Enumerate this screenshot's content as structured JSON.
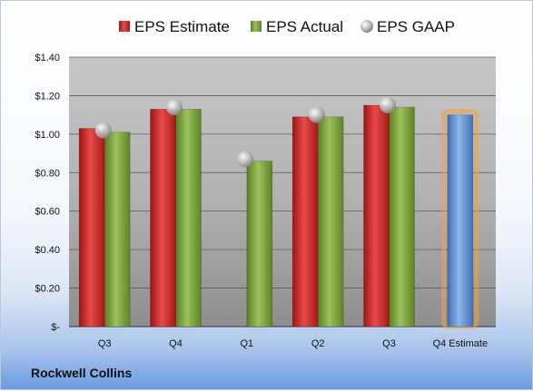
{
  "company": "Rockwell Collins",
  "chart_data": {
    "type": "bar",
    "categories": [
      "Q3",
      "Q4",
      "Q1",
      "Q2",
      "Q3",
      "Q4 Estimate"
    ],
    "ylim": [
      0,
      1.4
    ],
    "yticks": [
      0,
      0.2,
      0.4,
      0.6,
      0.8,
      1.0,
      1.2,
      1.4
    ],
    "ytick_labels": [
      "$-",
      "$0.20",
      "$0.40",
      "$0.60",
      "$0.80",
      "$1.00",
      "$1.20",
      "$1.40"
    ],
    "legend_position": "top",
    "grid": true,
    "series": [
      {
        "name": "EPS Estimate",
        "type": "bar",
        "color": "#d42a2a",
        "values": [
          1.03,
          1.13,
          null,
          1.09,
          1.15,
          null
        ]
      },
      {
        "name": "EPS Actual",
        "type": "bar",
        "color": "#7da13c",
        "values": [
          1.01,
          1.13,
          0.86,
          1.09,
          1.14,
          null
        ]
      },
      {
        "name": "EPS GAAP",
        "type": "scatter",
        "color": "#b8b8b8",
        "values": [
          1.02,
          1.14,
          0.87,
          1.1,
          1.15,
          null
        ]
      }
    ],
    "forecast": {
      "category": "Q4 Estimate",
      "value": 1.1,
      "color": "#5b8fd4",
      "glow_color": "#f5a040"
    }
  }
}
